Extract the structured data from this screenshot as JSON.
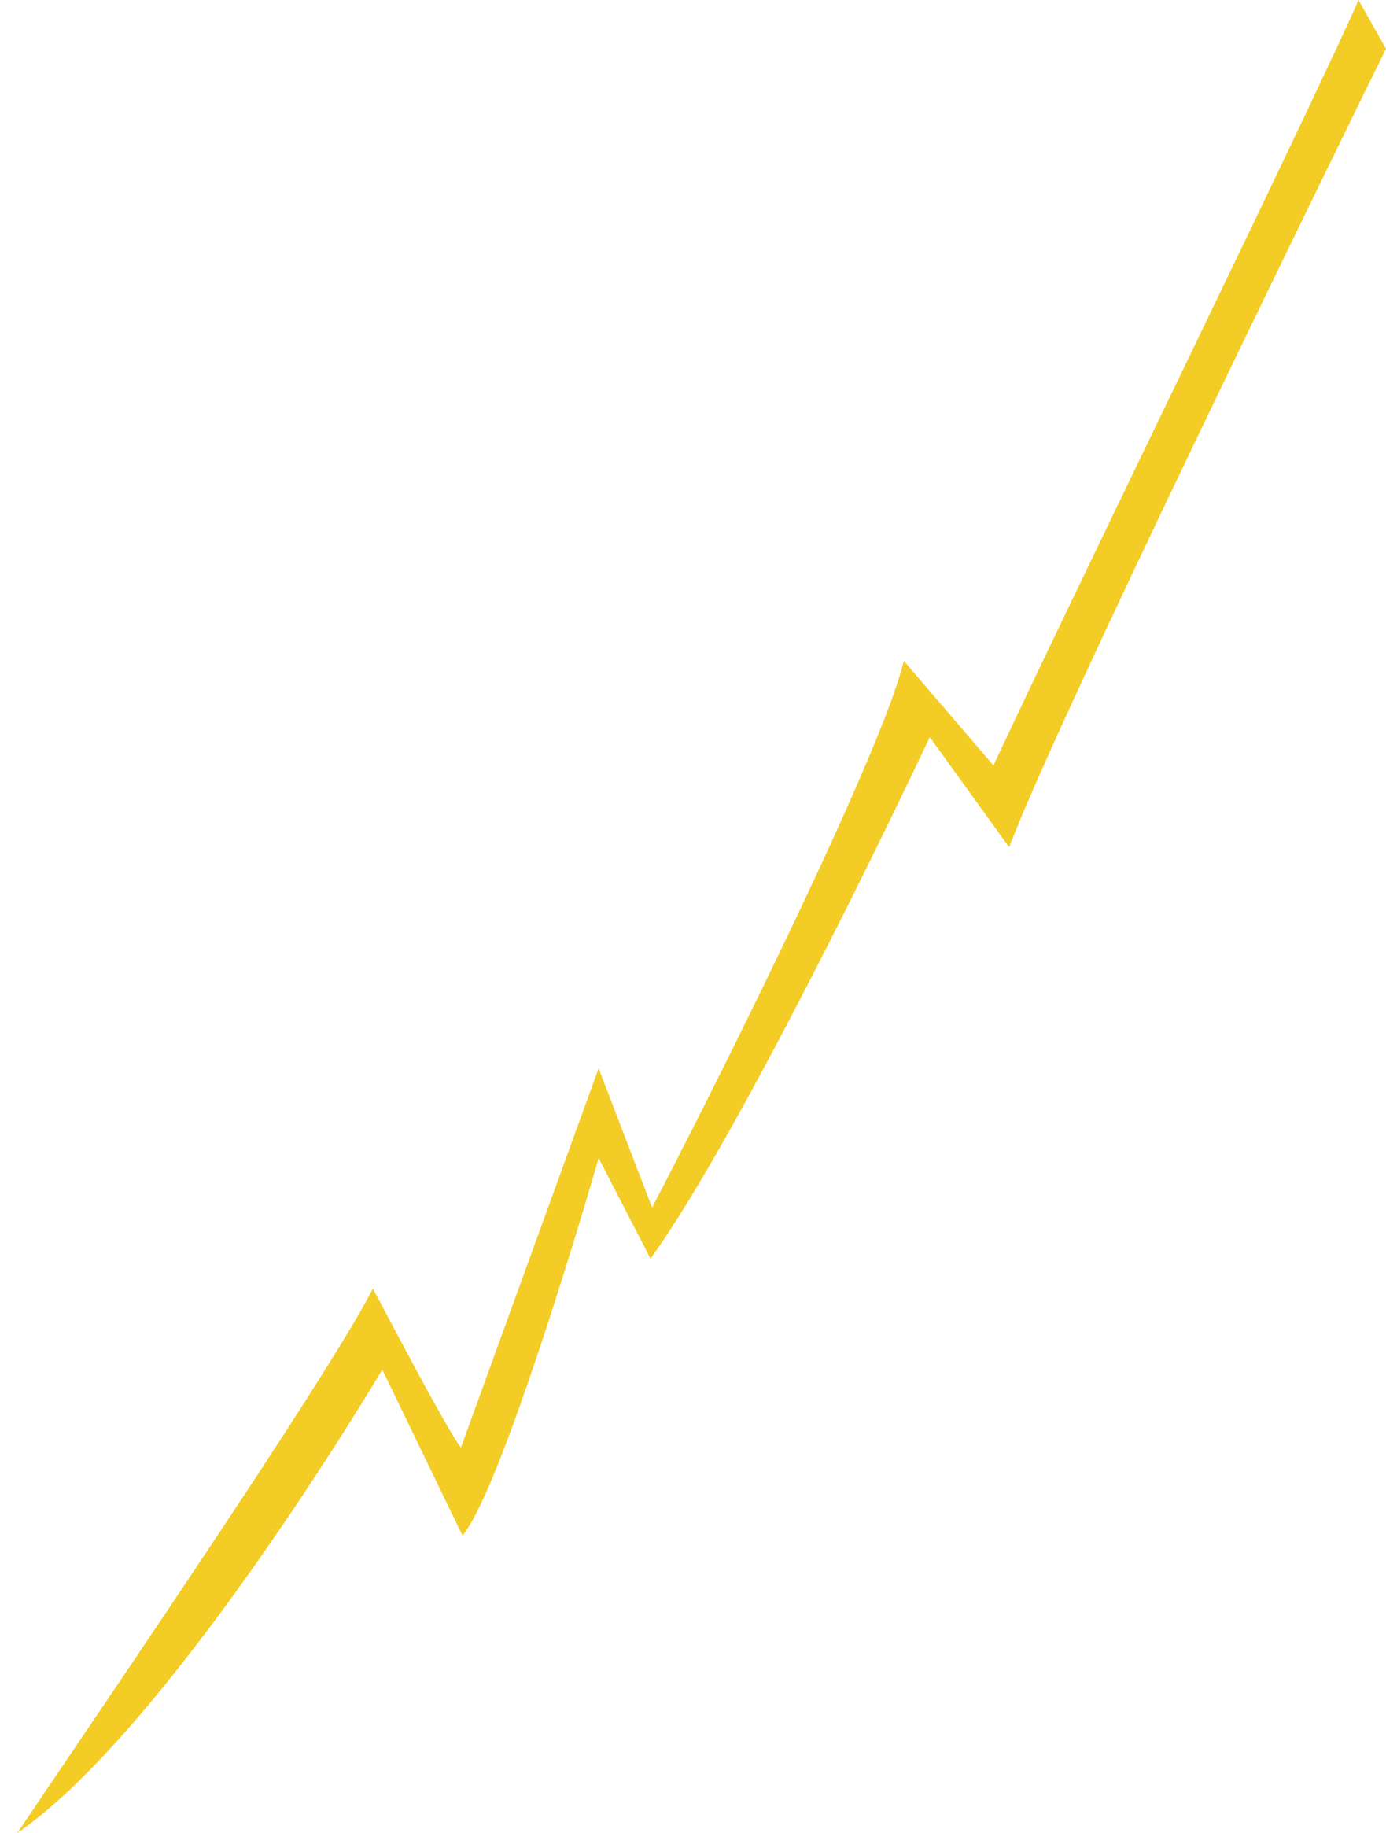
{
  "graphic": {
    "shape": "zigzag-lightning-stroke",
    "description": "",
    "colors": {
      "background": "#ffffff",
      "stroke_fill": "#F3CD25"
    }
  }
}
